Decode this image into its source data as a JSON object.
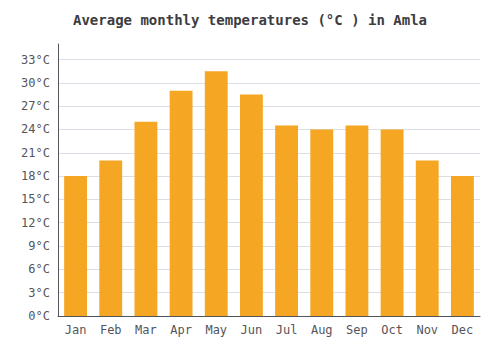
{
  "chart_data": {
    "type": "bar",
    "title": "Average monthly temperatures (°C ) in Amla",
    "categories": [
      "Jan",
      "Feb",
      "Mar",
      "Apr",
      "May",
      "Jun",
      "Jul",
      "Aug",
      "Sep",
      "Oct",
      "Nov",
      "Dec"
    ],
    "values": [
      18,
      20,
      25,
      29,
      31.5,
      28.5,
      24.5,
      24,
      24.5,
      24,
      20,
      18
    ],
    "color": "#F5A623",
    "ylim": [
      0,
      35
    ],
    "yticks": [
      {
        "value": 0,
        "label": "0°C"
      },
      {
        "value": 3,
        "label": "3°C"
      },
      {
        "value": 6,
        "label": "6°C"
      },
      {
        "value": 9,
        "label": "9°C"
      },
      {
        "value": 12,
        "label": "12°C"
      },
      {
        "value": 15,
        "label": "15°C"
      },
      {
        "value": 18,
        "label": "18°C"
      },
      {
        "value": 21,
        "label": "21°C"
      },
      {
        "value": 24,
        "label": "24°C"
      },
      {
        "value": 27,
        "label": "27°C"
      },
      {
        "value": 30,
        "label": "30°C"
      },
      {
        "value": 33,
        "label": "33°C"
      }
    ],
    "grid": true
  }
}
